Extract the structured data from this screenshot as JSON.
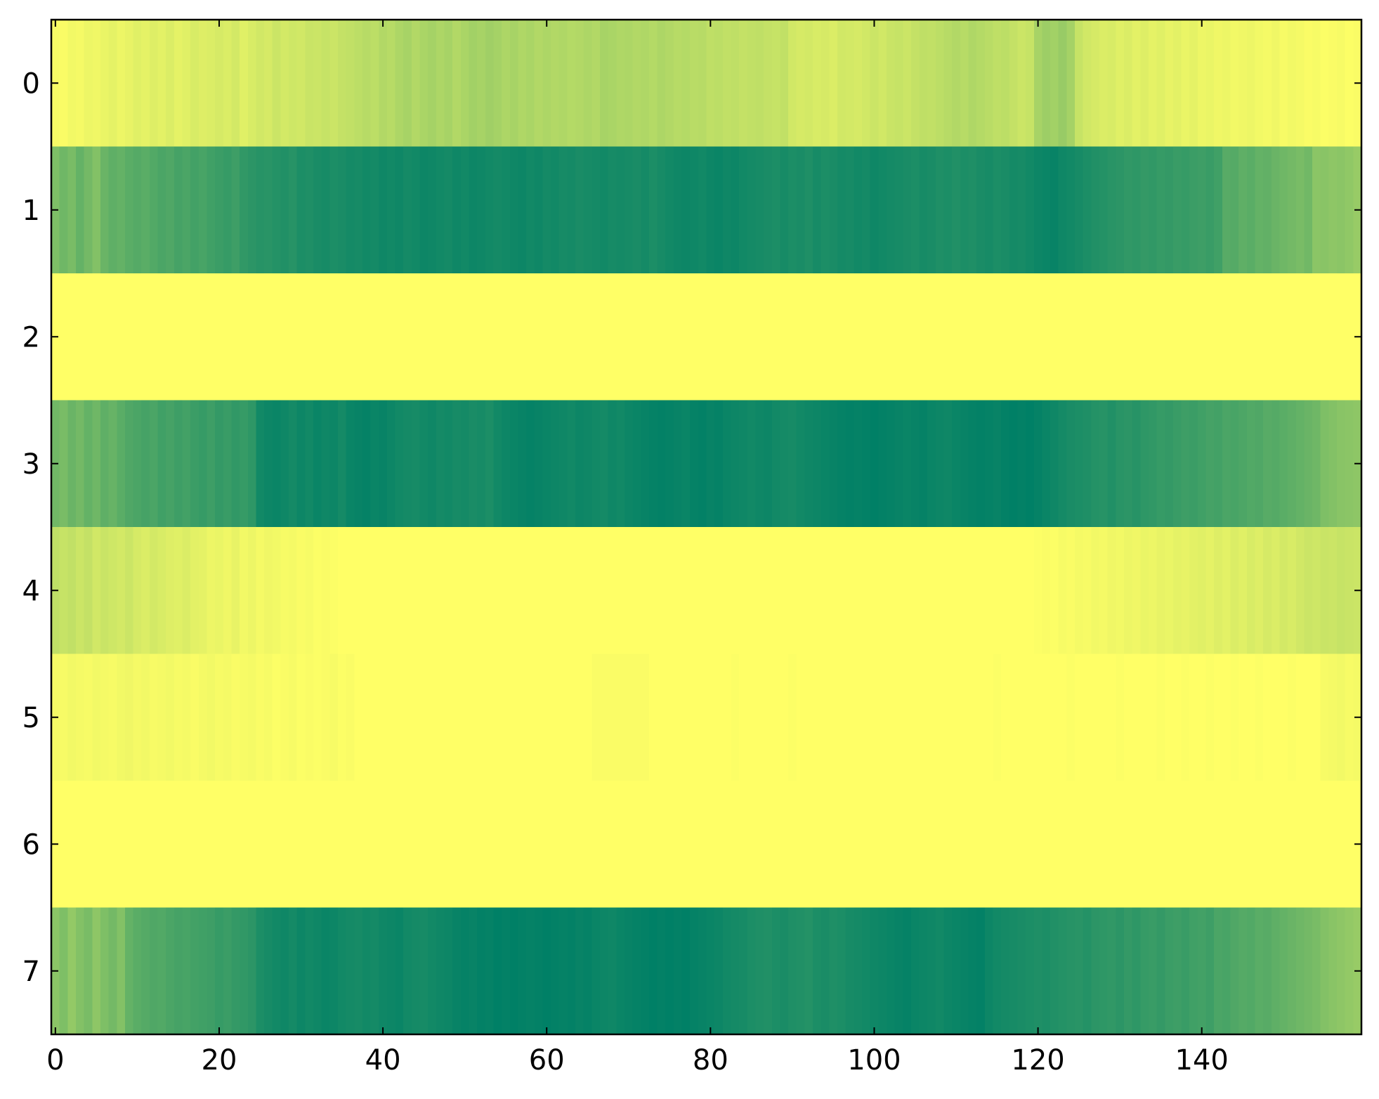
{
  "chart_data": {
    "type": "heatmap",
    "colormap": "summer",
    "xlim": [
      -0.5,
      159.5
    ],
    "ylim": [
      7.5,
      -0.5
    ],
    "xticks": [
      0,
      20,
      40,
      60,
      80,
      100,
      120,
      140
    ],
    "yticks": [
      0,
      1,
      2,
      3,
      4,
      5,
      6,
      7
    ],
    "values": [
      [
        0.97,
        0.98,
        0.95,
        0.96,
        0.93,
        0.94,
        0.92,
        0.9,
        0.93,
        0.91,
        0.88,
        0.9,
        0.87,
        0.89,
        0.86,
        0.9,
        0.88,
        0.85,
        0.87,
        0.86,
        0.84,
        0.86,
        0.83,
        0.88,
        0.85,
        0.82,
        0.84,
        0.8,
        0.83,
        0.81,
        0.82,
        0.79,
        0.8,
        0.78,
        0.8,
        0.77,
        0.76,
        0.74,
        0.72,
        0.74,
        0.7,
        0.72,
        0.68,
        0.66,
        0.7,
        0.67,
        0.65,
        0.68,
        0.66,
        0.7,
        0.67,
        0.64,
        0.66,
        0.63,
        0.65,
        0.68,
        0.66,
        0.69,
        0.67,
        0.7,
        0.68,
        0.7,
        0.69,
        0.71,
        0.7,
        0.68,
        0.7,
        0.66,
        0.67,
        0.69,
        0.68,
        0.7,
        0.69,
        0.71,
        0.68,
        0.7,
        0.72,
        0.71,
        0.73,
        0.72,
        0.75,
        0.74,
        0.76,
        0.75,
        0.77,
        0.76,
        0.75,
        0.77,
        0.78,
        0.76,
        0.82,
        0.84,
        0.83,
        0.85,
        0.84,
        0.86,
        0.82,
        0.83,
        0.84,
        0.82,
        0.8,
        0.82,
        0.79,
        0.78,
        0.8,
        0.77,
        0.75,
        0.76,
        0.74,
        0.72,
        0.7,
        0.72,
        0.69,
        0.71,
        0.73,
        0.75,
        0.74,
        0.77,
        0.8,
        0.78,
        0.66,
        0.62,
        0.64,
        0.6,
        0.65,
        0.78,
        0.82,
        0.84,
        0.86,
        0.85,
        0.88,
        0.86,
        0.89,
        0.87,
        0.9,
        0.88,
        0.91,
        0.89,
        0.92,
        0.9,
        0.93,
        0.92,
        0.94,
        0.93,
        0.95,
        0.94,
        0.93,
        0.95,
        0.96,
        0.94,
        0.97,
        0.95,
        0.96,
        0.98,
        0.97,
        0.99,
        0.98,
        0.97,
        0.99,
        0.98
      ],
      [
        0.5,
        0.44,
        0.48,
        0.4,
        0.46,
        0.52,
        0.42,
        0.38,
        0.4,
        0.36,
        0.34,
        0.36,
        0.33,
        0.3,
        0.32,
        0.28,
        0.3,
        0.27,
        0.29,
        0.26,
        0.24,
        0.22,
        0.25,
        0.2,
        0.18,
        0.16,
        0.17,
        0.15,
        0.14,
        0.16,
        0.12,
        0.13,
        0.11,
        0.1,
        0.12,
        0.11,
        0.09,
        0.1,
        0.08,
        0.09,
        0.07,
        0.08,
        0.07,
        0.09,
        0.08,
        0.06,
        0.07,
        0.08,
        0.09,
        0.07,
        0.08,
        0.06,
        0.07,
        0.08,
        0.09,
        0.08,
        0.07,
        0.06,
        0.08,
        0.07,
        0.09,
        0.08,
        0.1,
        0.09,
        0.11,
        0.1,
        0.09,
        0.08,
        0.1,
        0.09,
        0.1,
        0.11,
        0.09,
        0.12,
        0.1,
        0.08,
        0.07,
        0.06,
        0.07,
        0.08,
        0.06,
        0.05,
        0.07,
        0.06,
        0.08,
        0.09,
        0.1,
        0.11,
        0.12,
        0.1,
        0.12,
        0.11,
        0.13,
        0.1,
        0.12,
        0.11,
        0.09,
        0.1,
        0.08,
        0.09,
        0.07,
        0.08,
        0.09,
        0.1,
        0.11,
        0.12,
        0.1,
        0.11,
        0.13,
        0.12,
        0.14,
        0.12,
        0.13,
        0.11,
        0.1,
        0.12,
        0.11,
        0.09,
        0.1,
        0.08,
        0.06,
        0.05,
        0.04,
        0.07,
        0.08,
        0.1,
        0.12,
        0.14,
        0.15,
        0.17,
        0.18,
        0.2,
        0.19,
        0.21,
        0.2,
        0.22,
        0.21,
        0.23,
        0.22,
        0.24,
        0.25,
        0.23,
        0.26,
        0.35,
        0.34,
        0.38,
        0.36,
        0.4,
        0.39,
        0.42,
        0.44,
        0.46,
        0.48,
        0.45,
        0.55,
        0.54,
        0.56,
        0.55,
        0.57,
        0.6
      ],
      [
        1,
        1,
        1,
        1,
        1,
        1,
        1,
        1,
        1,
        1,
        1,
        1,
        1,
        1,
        1,
        1,
        1,
        1,
        1,
        1,
        1,
        1,
        1,
        1,
        1,
        1,
        1,
        1,
        1,
        1,
        1,
        1,
        1,
        1,
        1,
        1,
        1,
        1,
        1,
        1,
        1,
        1,
        1,
        1,
        1,
        1,
        1,
        1,
        1,
        1,
        1,
        1,
        1,
        1,
        1,
        1,
        1,
        1,
        1,
        1,
        1,
        1,
        1,
        1,
        1,
        1,
        1,
        1,
        1,
        1,
        1,
        1,
        1,
        1,
        1,
        1,
        1,
        1,
        1,
        1,
        1,
        1,
        1,
        1,
        1,
        1,
        1,
        1,
        1,
        1,
        1,
        1,
        1,
        1,
        1,
        1,
        1,
        1,
        1,
        1,
        1,
        1,
        1,
        1,
        1,
        1,
        1,
        1,
        1,
        1,
        1,
        1,
        1,
        1,
        1,
        1,
        1,
        1,
        1,
        1,
        1,
        1,
        1,
        1,
        1,
        1,
        1,
        1,
        1,
        1,
        1,
        1,
        1,
        1,
        1,
        1,
        1,
        1,
        1,
        1,
        1,
        1,
        1,
        1,
        1,
        1,
        1,
        1,
        1,
        1,
        1,
        1,
        1,
        1,
        1,
        1,
        1,
        1,
        1,
        1
      ],
      [
        0.45,
        0.48,
        0.42,
        0.46,
        0.4,
        0.44,
        0.38,
        0.41,
        0.36,
        0.32,
        0.3,
        0.28,
        0.3,
        0.26,
        0.28,
        0.25,
        0.27,
        0.24,
        0.22,
        0.25,
        0.21,
        0.23,
        0.2,
        0.22,
        0.19,
        0.08,
        0.06,
        0.05,
        0.07,
        0.09,
        0.06,
        0.08,
        0.05,
        0.07,
        0.06,
        0.09,
        0.05,
        0.04,
        0.03,
        0.05,
        0.04,
        0.06,
        0.08,
        0.09,
        0.1,
        0.08,
        0.07,
        0.09,
        0.08,
        0.1,
        0.09,
        0.11,
        0.1,
        0.12,
        0.08,
        0.06,
        0.05,
        0.04,
        0.03,
        0.04,
        0.05,
        0.06,
        0.07,
        0.08,
        0.06,
        0.07,
        0.08,
        0.09,
        0.07,
        0.08,
        0.06,
        0.05,
        0.04,
        0.03,
        0.02,
        0.03,
        0.04,
        0.05,
        0.03,
        0.02,
        0.04,
        0.03,
        0.05,
        0.06,
        0.07,
        0.08,
        0.07,
        0.06,
        0.08,
        0.09,
        0.1,
        0.08,
        0.07,
        0.06,
        0.05,
        0.04,
        0.03,
        0.02,
        0.03,
        0.02,
        0.01,
        0.02,
        0.03,
        0.04,
        0.05,
        0.04,
        0.03,
        0.05,
        0.06,
        0.07,
        0.05,
        0.04,
        0.03,
        0.02,
        0.03,
        0.04,
        0.02,
        0.01,
        0.02,
        0.01,
        0.03,
        0.05,
        0.07,
        0.09,
        0.11,
        0.12,
        0.13,
        0.15,
        0.16,
        0.14,
        0.17,
        0.18,
        0.16,
        0.19,
        0.2,
        0.22,
        0.21,
        0.23,
        0.25,
        0.24,
        0.26,
        0.28,
        0.27,
        0.3,
        0.29,
        0.31,
        0.33,
        0.32,
        0.35,
        0.34,
        0.36,
        0.38,
        0.4,
        0.42,
        0.44,
        0.5,
        0.52,
        0.54,
        0.55,
        0.56
      ],
      [
        0.75,
        0.78,
        0.76,
        0.8,
        0.77,
        0.82,
        0.79,
        0.81,
        0.83,
        0.8,
        0.84,
        0.86,
        0.83,
        0.85,
        0.87,
        0.88,
        0.86,
        0.89,
        0.9,
        0.93,
        0.92,
        0.94,
        0.91,
        0.95,
        0.93,
        0.96,
        0.94,
        0.95,
        0.97,
        0.96,
        0.98,
        0.97,
        0.99,
        0.98,
        0.99,
        1,
        1,
        1,
        1,
        1,
        1,
        1,
        1,
        1,
        1,
        1,
        1,
        1,
        1,
        1,
        1,
        1,
        1,
        1,
        1,
        1,
        1,
        1,
        1,
        1,
        1,
        1,
        1,
        1,
        1,
        1,
        1,
        1,
        1,
        1,
        1,
        1,
        1,
        1,
        1,
        1,
        1,
        1,
        1,
        1,
        1,
        1,
        1,
        1,
        1,
        1,
        1,
        1,
        1,
        1,
        1,
        1,
        1,
        1,
        1,
        1,
        1,
        1,
        1,
        1,
        1,
        1,
        1,
        1,
        1,
        1,
        1,
        1,
        1,
        1,
        1,
        1,
        1,
        1,
        1,
        1,
        1,
        1,
        1,
        1,
        0.99,
        0.98,
        0.99,
        0.97,
        0.98,
        0.96,
        0.97,
        0.95,
        0.96,
        0.94,
        0.95,
        0.93,
        0.94,
        0.92,
        0.93,
        0.91,
        0.92,
        0.9,
        0.91,
        0.89,
        0.88,
        0.9,
        0.87,
        0.89,
        0.86,
        0.88,
        0.85,
        0.87,
        0.84,
        0.86,
        0.83,
        0.85,
        0.82,
        0.8,
        0.81,
        0.79,
        0.8,
        0.78,
        0.79,
        0.8
      ],
      [
        0.96,
        0.97,
        0.95,
        0.96,
        0.97,
        0.95,
        0.96,
        0.97,
        0.95,
        0.94,
        0.96,
        0.95,
        0.97,
        0.96,
        0.95,
        0.97,
        0.96,
        0.98,
        0.96,
        0.95,
        0.97,
        0.96,
        0.98,
        0.97,
        0.96,
        0.98,
        0.97,
        0.99,
        0.98,
        0.97,
        0.99,
        0.98,
        0.99,
        0.98,
        0.97,
        0.99,
        0.98,
        1,
        1,
        1,
        1,
        1,
        1,
        1,
        1,
        1,
        1,
        1,
        1,
        1,
        1,
        1,
        1,
        1,
        1,
        1,
        1,
        1,
        1,
        1,
        1,
        1,
        1,
        1,
        1,
        1,
        0.98,
        0.98,
        0.98,
        0.98,
        0.98,
        0.98,
        0.98,
        1,
        1,
        1,
        1,
        1,
        1,
        1,
        1,
        1,
        1,
        0.99,
        1,
        1,
        1,
        1,
        1,
        1,
        0.99,
        1,
        1,
        1,
        1,
        1,
        1,
        1,
        1,
        1,
        1,
        1,
        1,
        1,
        1,
        1,
        1,
        1,
        1,
        1,
        1,
        1,
        1,
        1,
        1,
        0.99,
        1,
        1,
        1,
        1,
        1,
        1,
        1,
        1,
        0.99,
        1,
        1,
        1,
        1,
        1,
        0.99,
        1,
        1,
        1,
        1,
        0.99,
        1,
        1,
        0.99,
        1,
        1,
        0.99,
        1,
        1,
        0.99,
        1,
        1,
        0.99,
        1,
        1,
        1,
        0.99,
        1,
        1,
        1,
        0.97,
        0.96,
        0.95,
        0.97,
        0.96
      ],
      [
        1,
        1,
        1,
        1,
        1,
        1,
        1,
        1,
        1,
        1,
        1,
        1,
        1,
        1,
        1,
        1,
        1,
        1,
        1,
        1,
        1,
        1,
        1,
        1,
        1,
        1,
        1,
        1,
        1,
        1,
        1,
        1,
        1,
        1,
        1,
        1,
        1,
        1,
        1,
        1,
        1,
        1,
        1,
        1,
        1,
        1,
        1,
        1,
        1,
        1,
        1,
        1,
        1,
        1,
        1,
        1,
        1,
        1,
        1,
        1,
        1,
        1,
        1,
        1,
        1,
        1,
        1,
        1,
        1,
        1,
        1,
        1,
        1,
        1,
        1,
        1,
        1,
        1,
        1,
        1,
        1,
        1,
        1,
        1,
        1,
        1,
        1,
        1,
        1,
        1,
        1,
        1,
        1,
        1,
        1,
        1,
        1,
        1,
        1,
        1,
        1,
        1,
        1,
        1,
        1,
        1,
        1,
        1,
        1,
        1,
        1,
        1,
        1,
        1,
        1,
        1,
        1,
        1,
        1,
        1,
        1,
        1,
        1,
        1,
        1,
        1,
        1,
        1,
        1,
        1,
        1,
        1,
        1,
        1,
        1,
        1,
        1,
        1,
        1,
        1,
        1,
        1,
        1,
        1,
        1,
        1,
        1,
        1,
        1,
        1,
        1,
        1,
        1,
        1,
        1,
        1,
        1,
        1,
        1,
        1
      ],
      [
        0.55,
        0.5,
        0.58,
        0.52,
        0.48,
        0.56,
        0.5,
        0.46,
        0.52,
        0.4,
        0.36,
        0.34,
        0.32,
        0.33,
        0.3,
        0.28,
        0.29,
        0.27,
        0.26,
        0.25,
        0.22,
        0.24,
        0.21,
        0.2,
        0.18,
        0.12,
        0.1,
        0.08,
        0.07,
        0.09,
        0.06,
        0.08,
        0.07,
        0.05,
        0.06,
        0.08,
        0.09,
        0.1,
        0.08,
        0.09,
        0.07,
        0.06,
        0.05,
        0.08,
        0.09,
        0.1,
        0.08,
        0.07,
        0.06,
        0.04,
        0.03,
        0.04,
        0.02,
        0.03,
        0.01,
        0.02,
        0.01,
        0.02,
        0.03,
        0.02,
        0.01,
        0.02,
        0.03,
        0.02,
        0.04,
        0.03,
        0.05,
        0.06,
        0.07,
        0.05,
        0.04,
        0.03,
        0.02,
        0.01,
        0.02,
        0.01,
        0.02,
        0.01,
        0.03,
        0.04,
        0.05,
        0.06,
        0.08,
        0.09,
        0.1,
        0.12,
        0.13,
        0.14,
        0.12,
        0.11,
        0.13,
        0.14,
        0.15,
        0.12,
        0.11,
        0.13,
        0.12,
        0.1,
        0.09,
        0.08,
        0.07,
        0.06,
        0.05,
        0.04,
        0.03,
        0.05,
        0.06,
        0.07,
        0.08,
        0.06,
        0.05,
        0.04,
        0.03,
        0.02,
        0.06,
        0.08,
        0.09,
        0.1,
        0.11,
        0.12,
        0.13,
        0.12,
        0.14,
        0.15,
        0.16,
        0.17,
        0.15,
        0.18,
        0.19,
        0.2,
        0.18,
        0.21,
        0.19,
        0.22,
        0.23,
        0.21,
        0.24,
        0.25,
        0.23,
        0.26,
        0.27,
        0.25,
        0.3,
        0.29,
        0.32,
        0.34,
        0.33,
        0.36,
        0.35,
        0.38,
        0.4,
        0.42,
        0.44,
        0.46,
        0.48,
        0.52,
        0.54,
        0.56,
        0.58,
        0.6
      ]
    ]
  }
}
